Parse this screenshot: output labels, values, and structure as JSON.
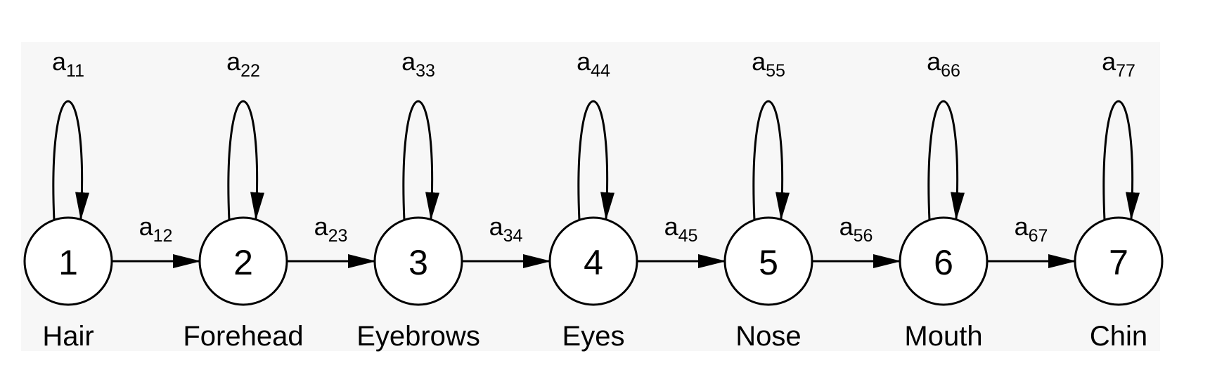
{
  "diagram": {
    "colors": {
      "background": "#f7f7f7",
      "stroke": "#000000",
      "node_fill": "#ffffff"
    },
    "states": [
      {
        "id": "1",
        "label": "Hair",
        "self_loop": {
          "base": "a",
          "sub": "11"
        }
      },
      {
        "id": "2",
        "label": "Forehead",
        "self_loop": {
          "base": "a",
          "sub": "22"
        }
      },
      {
        "id": "3",
        "label": "Eyebrows",
        "self_loop": {
          "base": "a",
          "sub": "33"
        }
      },
      {
        "id": "4",
        "label": "Eyes",
        "self_loop": {
          "base": "a",
          "sub": "44"
        }
      },
      {
        "id": "5",
        "label": "Nose",
        "self_loop": {
          "base": "a",
          "sub": "55"
        }
      },
      {
        "id": "6",
        "label": "Mouth",
        "self_loop": {
          "base": "a",
          "sub": "66"
        }
      },
      {
        "id": "7",
        "label": "Chin",
        "self_loop": {
          "base": "a",
          "sub": "77"
        }
      }
    ],
    "transitions": [
      {
        "from": "1",
        "to": "2",
        "base": "a",
        "sub": "12"
      },
      {
        "from": "2",
        "to": "3",
        "base": "a",
        "sub": "23"
      },
      {
        "from": "3",
        "to": "4",
        "base": "a",
        "sub": "34"
      },
      {
        "from": "4",
        "to": "5",
        "base": "a",
        "sub": "45"
      },
      {
        "from": "5",
        "to": "6",
        "base": "a",
        "sub": "56"
      },
      {
        "from": "6",
        "to": "7",
        "base": "a",
        "sub": "67"
      }
    ]
  }
}
